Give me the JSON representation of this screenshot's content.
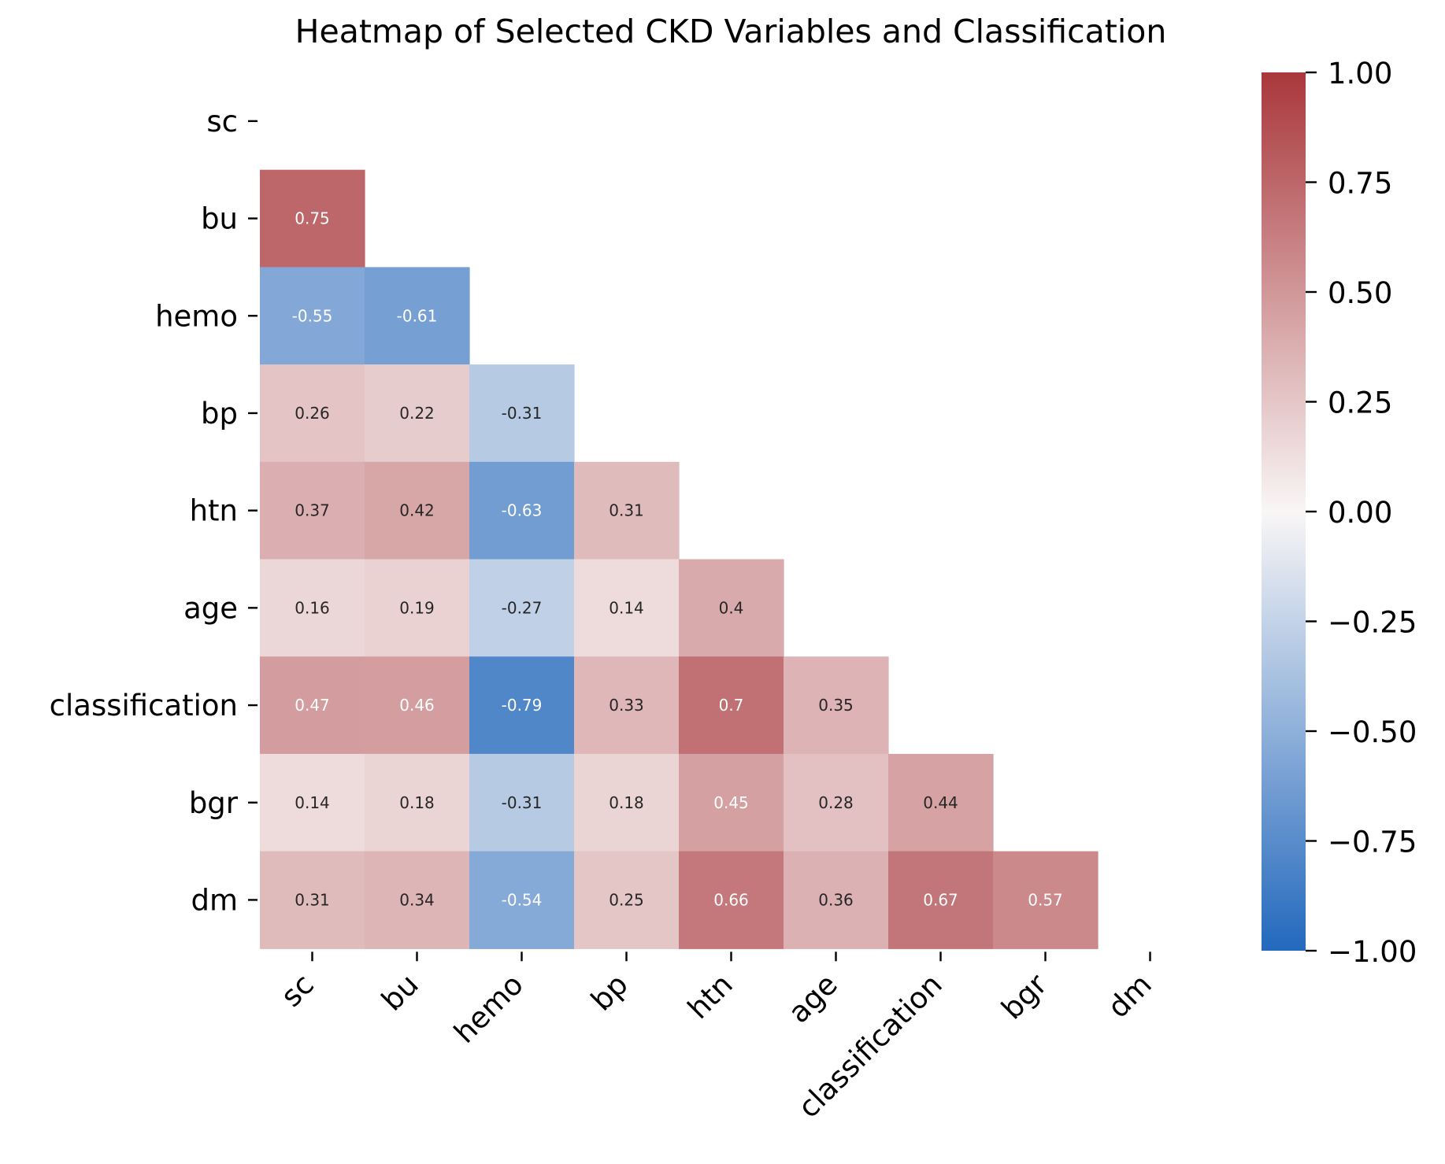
{
  "chart_data": {
    "type": "heatmap",
    "title": "Heatmap of Selected CKD Variables and Classification",
    "variables": [
      "sc",
      "bu",
      "hemo",
      "bp",
      "htn",
      "age",
      "classification",
      "bgr",
      "dm"
    ],
    "mask": "upper triangle including diagonal",
    "rows": [
      {
        "row": "sc",
        "values": []
      },
      {
        "row": "bu",
        "values": [
          0.75
        ]
      },
      {
        "row": "hemo",
        "values": [
          -0.55,
          -0.61
        ]
      },
      {
        "row": "bp",
        "values": [
          0.26,
          0.22,
          -0.31
        ]
      },
      {
        "row": "htn",
        "values": [
          0.37,
          0.42,
          -0.63,
          0.31
        ]
      },
      {
        "row": "age",
        "values": [
          0.16,
          0.19,
          -0.27,
          0.14,
          0.4
        ]
      },
      {
        "row": "classification",
        "values": [
          0.47,
          0.46,
          -0.79,
          0.33,
          0.7,
          0.35
        ]
      },
      {
        "row": "bgr",
        "values": [
          0.14,
          0.18,
          -0.31,
          0.18,
          0.45,
          0.28,
          0.44
        ]
      },
      {
        "row": "dm",
        "values": [
          0.31,
          0.34,
          -0.54,
          0.25,
          0.66,
          0.36,
          0.67,
          0.57
        ]
      }
    ],
    "colormap": {
      "name": "vlag",
      "low": "#2369bd",
      "mid": "#f9f6f6",
      "high": "#a9373b"
    },
    "colorbar": {
      "range": [
        -1.0,
        1.0
      ],
      "ticks": [
        1.0,
        0.75,
        0.5,
        0.25,
        0.0,
        -0.25,
        -0.5,
        -0.75,
        -1.0
      ],
      "tick_labels": [
        "1.00",
        "0.75",
        "0.50",
        "0.25",
        "0.00",
        "−0.25",
        "−0.50",
        "−0.75",
        "−1.00"
      ]
    },
    "annotation_color_rule": {
      "light_text": "#ffffff",
      "dark_text": "#262626",
      "threshold_abs": 0.45
    }
  }
}
